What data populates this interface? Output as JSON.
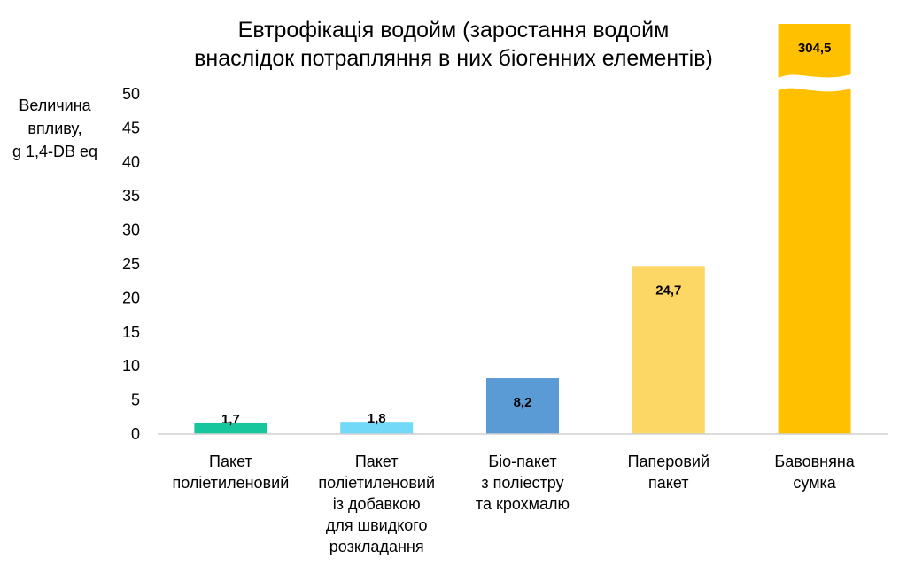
{
  "chart_data": {
    "type": "bar",
    "title_lines": [
      "Евтрофікація водойм (заростання водойм",
      "внаслідок потрапляння в них біогенних елементів)"
    ],
    "ylabel_lines": [
      "Величина",
      "впливу,",
      "g 1,4-DB eq"
    ],
    "xlabel": "",
    "ylim": [
      0,
      50
    ],
    "yticks": [
      0,
      5,
      10,
      15,
      20,
      25,
      30,
      35,
      40,
      45,
      50
    ],
    "axis_break": true,
    "grid": false,
    "legend": "none",
    "categories": [
      [
        "Пакет",
        "поліетиленовий"
      ],
      [
        "Пакет",
        "поліетиленовий",
        "із добавкою",
        "для швидкого",
        "розкладання"
      ],
      [
        "Біо-пакет",
        "з поліестру",
        "та крохмалю"
      ],
      [
        "Паперовий",
        "пакет"
      ],
      [
        "Бавовняна",
        "сумка"
      ]
    ],
    "values": [
      1.7,
      1.8,
      8.2,
      24.7,
      304.5
    ],
    "value_labels": [
      "1,7",
      "1,8",
      "8,2",
      "24,7",
      "304,5"
    ],
    "colors": [
      "#17c69d",
      "#72d9f8",
      "#5b9bd5",
      "#fdd766",
      "#ffc000"
    ]
  }
}
